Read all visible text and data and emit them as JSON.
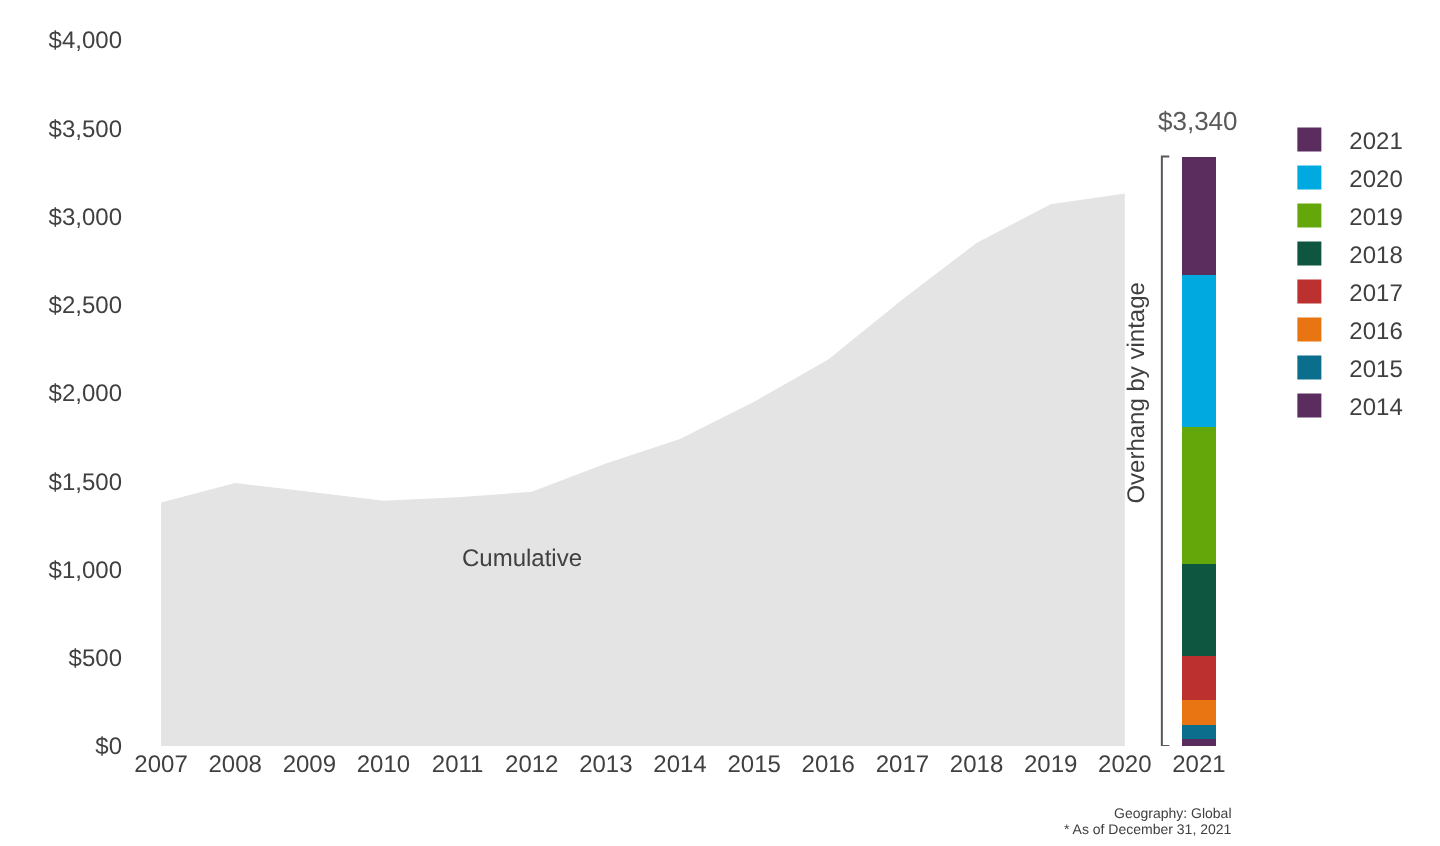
{
  "chart_data": {
    "type": "bar",
    "stacked": true,
    "categories": [
      "2007",
      "2008",
      "2009",
      "2010",
      "2011",
      "2012",
      "2013",
      "2014",
      "2015",
      "2016",
      "2017",
      "2018",
      "2019",
      "2020",
      "2021"
    ],
    "series": [
      {
        "type": "area",
        "color": "#e4e4e4",
        "values": [
          1380,
          1490,
          1440,
          1390,
          1410,
          1440,
          1600,
          1740,
          1950,
          2190,
          2530,
          2850,
          3070,
          3130,
          null
        ]
      },
      {
        "name": "2014",
        "color": "#5b2c5e",
        "values": [
          null,
          null,
          null,
          null,
          null,
          null,
          null,
          null,
          null,
          null,
          null,
          null,
          null,
          null,
          40
        ]
      },
      {
        "name": "2015",
        "color": "#0a6e8c",
        "values": [
          null,
          null,
          null,
          null,
          null,
          null,
          null,
          null,
          null,
          null,
          null,
          null,
          null,
          null,
          80
        ]
      },
      {
        "name": "2016",
        "color": "#e87511",
        "values": [
          null,
          null,
          null,
          null,
          null,
          null,
          null,
          null,
          null,
          null,
          null,
          null,
          null,
          null,
          140
        ]
      },
      {
        "name": "2017",
        "color": "#bd3030",
        "values": [
          null,
          null,
          null,
          null,
          null,
          null,
          null,
          null,
          null,
          null,
          null,
          null,
          null,
          null,
          250
        ]
      },
      {
        "name": "2018",
        "color": "#0f5640",
        "values": [
          null,
          null,
          null,
          null,
          null,
          null,
          null,
          null,
          null,
          null,
          null,
          null,
          null,
          null,
          520
        ]
      },
      {
        "name": "2019",
        "color": "#64a70b",
        "values": [
          null,
          null,
          null,
          null,
          null,
          null,
          null,
          null,
          null,
          null,
          null,
          null,
          null,
          null,
          780
        ]
      },
      {
        "name": "2020",
        "color": "#00a9e0",
        "values": [
          null,
          null,
          null,
          null,
          null,
          null,
          null,
          null,
          null,
          null,
          null,
          null,
          null,
          null,
          860
        ]
      },
      {
        "name": "2021",
        "color": "#5b2c5e",
        "values": [
          null,
          null,
          null,
          null,
          null,
          null,
          null,
          null,
          null,
          null,
          null,
          null,
          null,
          null,
          670
        ]
      }
    ],
    "totals": [
      null,
      null,
      null,
      null,
      null,
      null,
      null,
      null,
      null,
      null,
      null,
      null,
      null,
      null,
      "$3,340"
    ],
    "ylim": [
      0,
      4000
    ],
    "yticks": [
      {
        "value": 0,
        "label": "$0"
      },
      {
        "value": 500,
        "label": "$500"
      },
      {
        "value": 1000,
        "label": "$1,000"
      },
      {
        "value": 1500,
        "label": "$1,500"
      },
      {
        "value": 2000,
        "label": "$2,000"
      },
      {
        "value": 2500,
        "label": "$2,500"
      },
      {
        "value": 3000,
        "label": "$3,000"
      },
      {
        "value": 3500,
        "label": "$3,500"
      },
      {
        "value": 4000,
        "label": "$4,000"
      }
    ],
    "grid": false,
    "legend": "right",
    "annotations": [
      "Cumulative",
      "Overhang by vintage",
      "Geography: Global",
      "* As of December 31, 2021"
    ]
  }
}
